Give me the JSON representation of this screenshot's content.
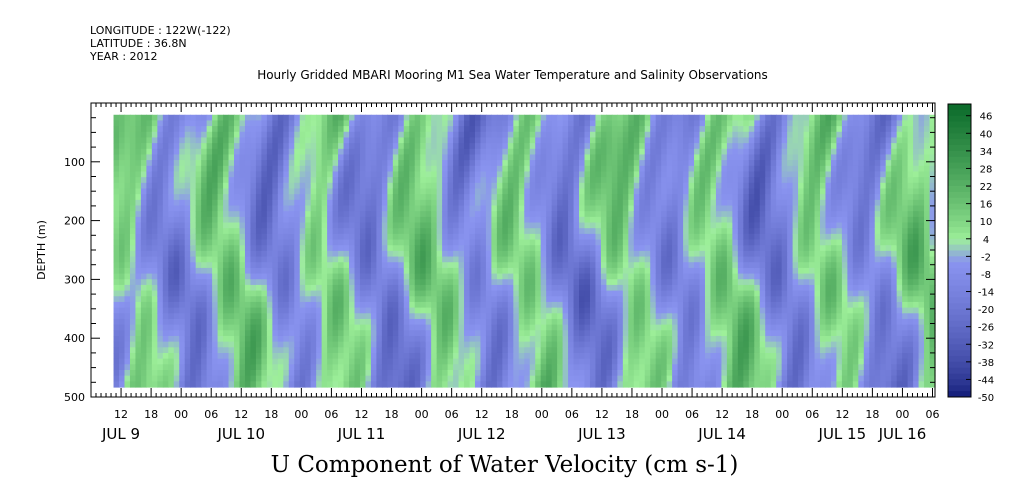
{
  "header": {
    "longitude": "LONGITUDE : 122W(-122)",
    "latitude": "LATITUDE : 36.8N",
    "year": "YEAR : 2012"
  },
  "chart_data": {
    "type": "heatmap",
    "title": "Hourly Gridded MBARI Mooring M1 Sea Water Temperature and Salinity Observations",
    "xlabel": "U Component of Water Velocity (cm s-1)",
    "ylabel": "DEPTH (m)",
    "ylim": [
      500,
      0
    ],
    "y_ticks": [
      100,
      200,
      300,
      400,
      500
    ],
    "x_hour_ticks": [
      "12",
      "18",
      "00",
      "06",
      "12",
      "18",
      "00",
      "06",
      "12",
      "18",
      "00",
      "06",
      "12",
      "18",
      "00",
      "06",
      "12",
      "18",
      "00",
      "06",
      "12",
      "18",
      "00",
      "06",
      "12",
      "18",
      "00",
      "06"
    ],
    "day_labels": [
      "JUL  9",
      "JUL 10",
      "JUL 11",
      "JUL 12",
      "JUL 13",
      "JUL 14",
      "JUL 15",
      "JUL 16"
    ],
    "colorbar_labels": [
      "46",
      "40",
      "34",
      "28",
      "22",
      "16",
      "10",
      "4",
      "-2",
      "-8",
      "-14",
      "-20",
      "-26",
      "-32",
      "-38",
      "-44",
      "-50"
    ],
    "value_range": [
      -50,
      50
    ],
    "grid": false,
    "legend": "right",
    "palette": {
      "low": "#0a1470",
      "mid_low": "#8a94f0",
      "mid_high": "#9ef09a",
      "high": "#0a6a2a"
    }
  }
}
